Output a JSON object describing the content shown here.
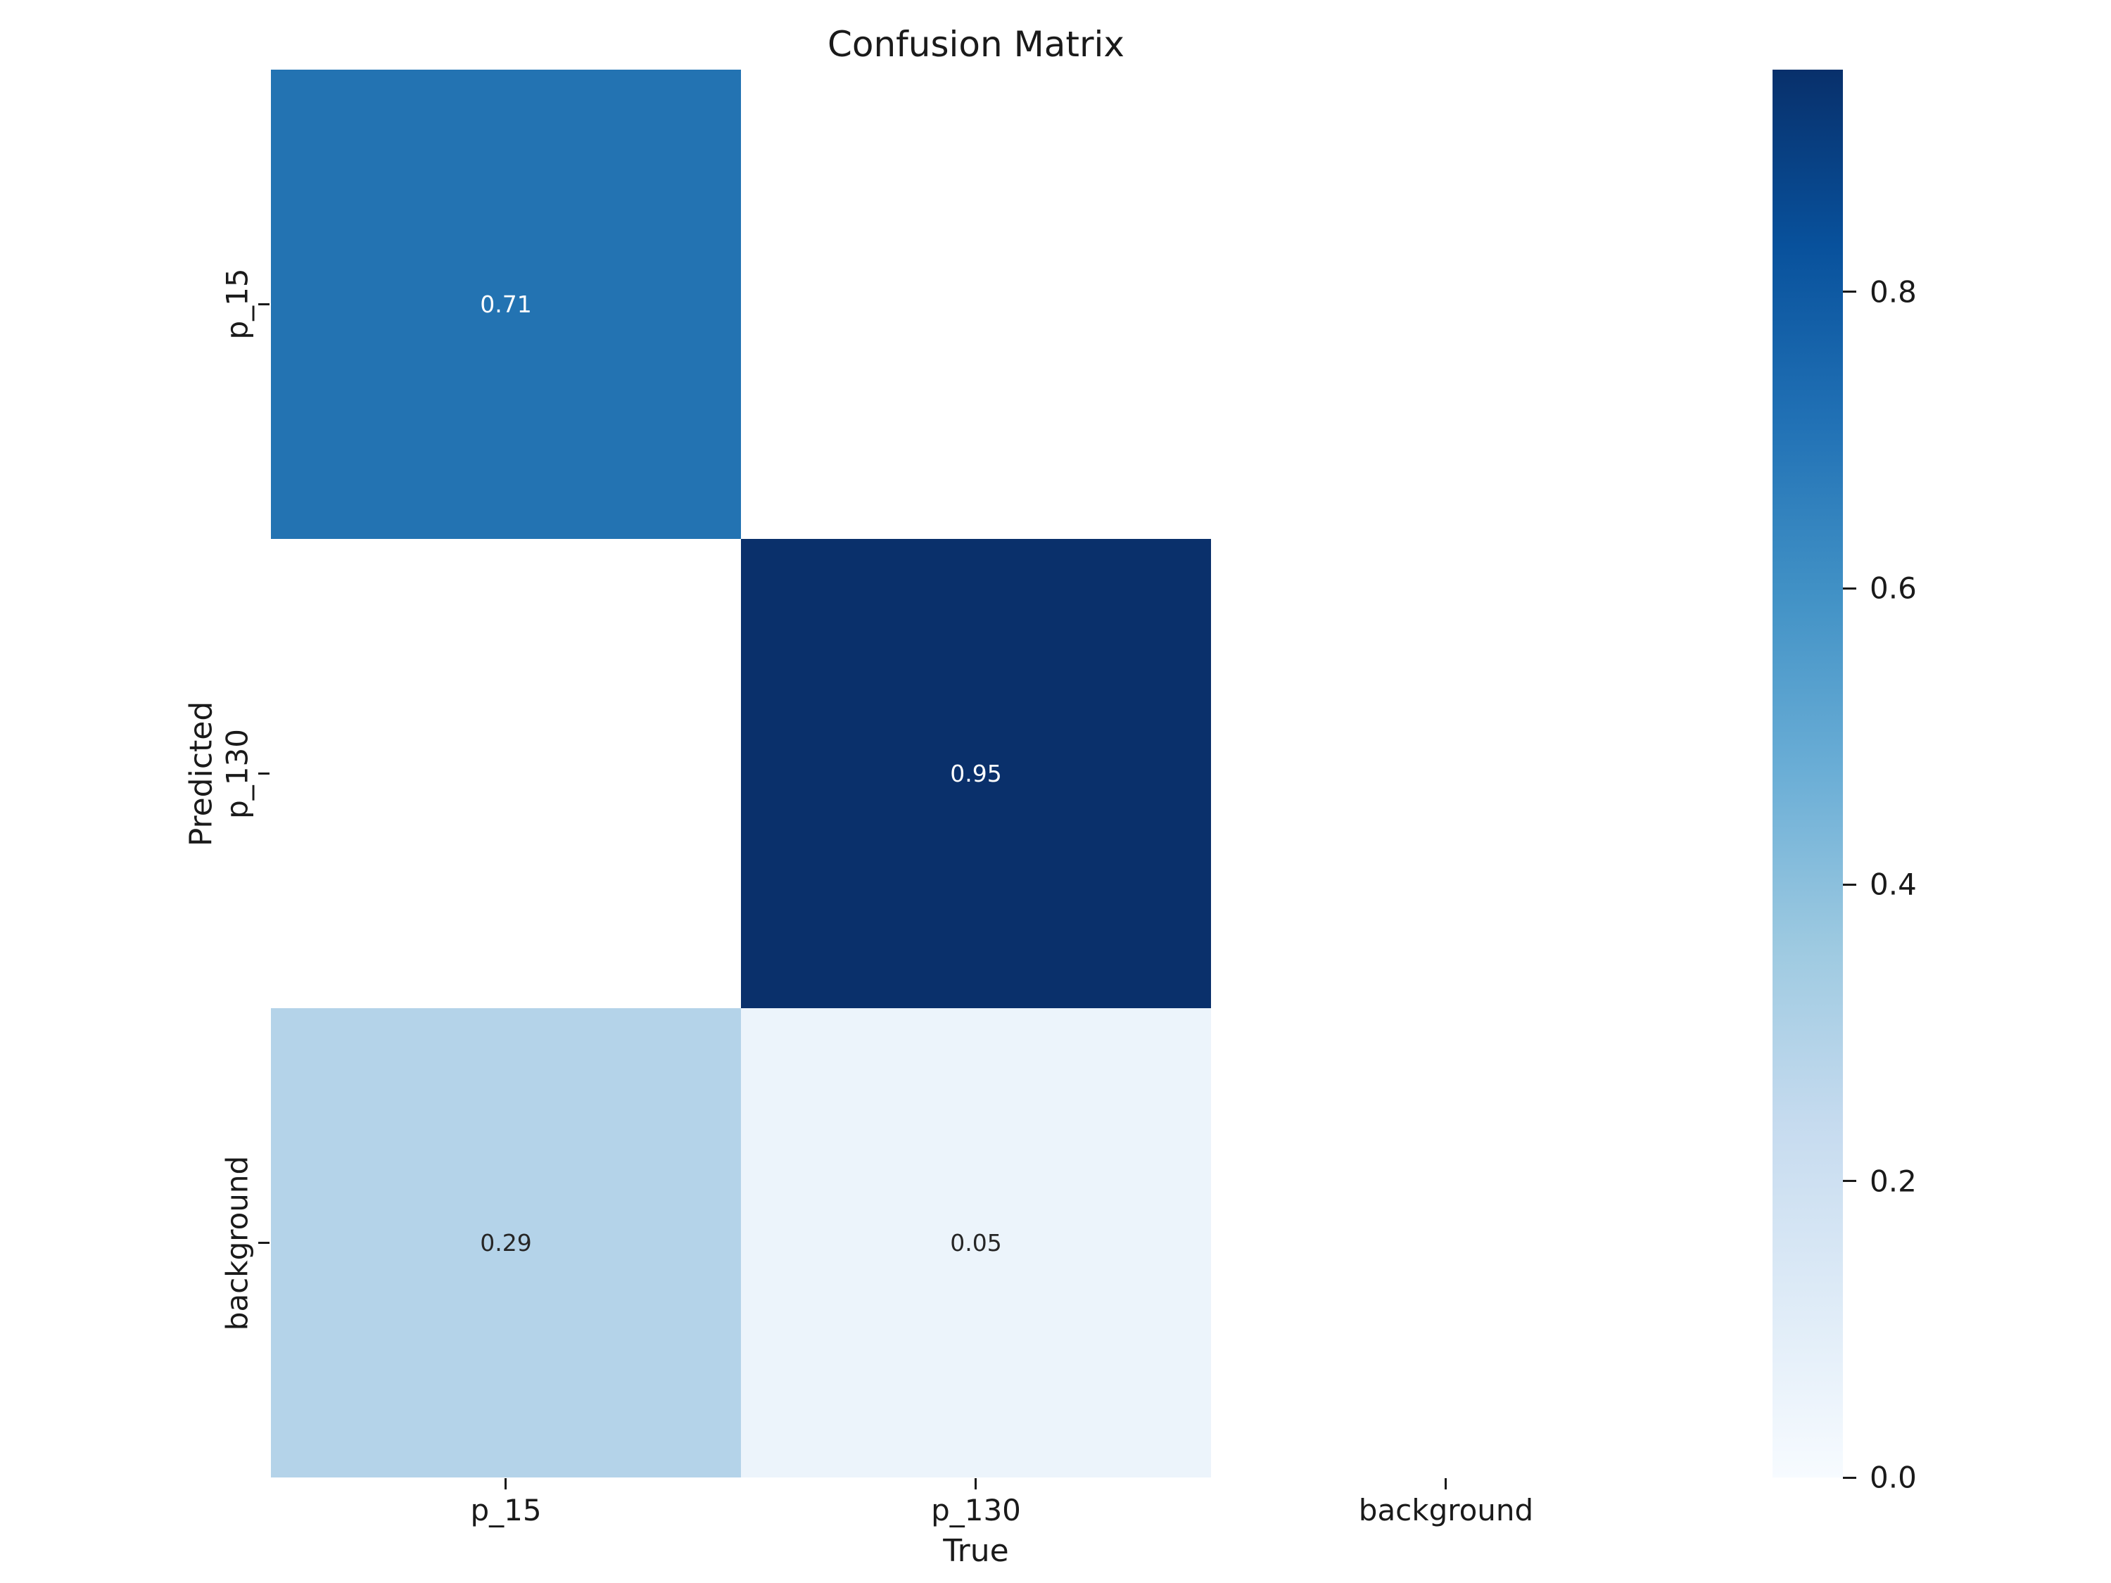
{
  "chart_data": {
    "type": "heatmap",
    "title": "Confusion Matrix",
    "xlabel": "True",
    "ylabel": "Predicted",
    "x_categories": [
      "p_15",
      "p_130",
      "background"
    ],
    "y_categories": [
      "p_15",
      "p_130",
      "background"
    ],
    "rows": [
      [
        0.71,
        null,
        null
      ],
      [
        null,
        0.95,
        null
      ],
      [
        0.29,
        0.05,
        null
      ]
    ],
    "cell_labels": [
      [
        "0.71",
        "",
        ""
      ],
      [
        "",
        "0.95",
        ""
      ],
      [
        "0.29",
        "0.05",
        ""
      ]
    ],
    "cell_colors": [
      [
        "#2373b2",
        "#ffffff",
        "#ffffff"
      ],
      [
        "#ffffff",
        "#0a306b",
        "#ffffff"
      ],
      [
        "#b4d3e9",
        "#ecf4fb",
        "#ffffff"
      ]
    ],
    "annot_colors": [
      [
        "#ffffff",
        "",
        ""
      ],
      [
        "",
        "#ffffff",
        ""
      ],
      [
        "#262626",
        "#262626",
        ""
      ]
    ],
    "colormap": "Blues",
    "vmin": 0.0,
    "vmax": 0.95,
    "grid": false,
    "legend_position": "right-colorbar",
    "colorbar": {
      "ticks": [
        {
          "label": "0.8",
          "value": 0.8
        },
        {
          "label": "0.6",
          "value": 0.6
        },
        {
          "label": "0.4",
          "value": 0.4
        },
        {
          "label": "0.2",
          "value": 0.2
        },
        {
          "label": "0.0",
          "value": 0.0
        }
      ],
      "gradient_stops": [
        {
          "color": "#08306b",
          "pos": "0%"
        },
        {
          "color": "#08519c",
          "pos": "12.5%"
        },
        {
          "color": "#2171b5",
          "pos": "25%"
        },
        {
          "color": "#4292c6",
          "pos": "37.5%"
        },
        {
          "color": "#6baed6",
          "pos": "50%"
        },
        {
          "color": "#9ecae1",
          "pos": "62.5%"
        },
        {
          "color": "#c6dbef",
          "pos": "75%"
        },
        {
          "color": "#deebf7",
          "pos": "87.5%"
        },
        {
          "color": "#f7fbff",
          "pos": "100%"
        }
      ]
    }
  }
}
